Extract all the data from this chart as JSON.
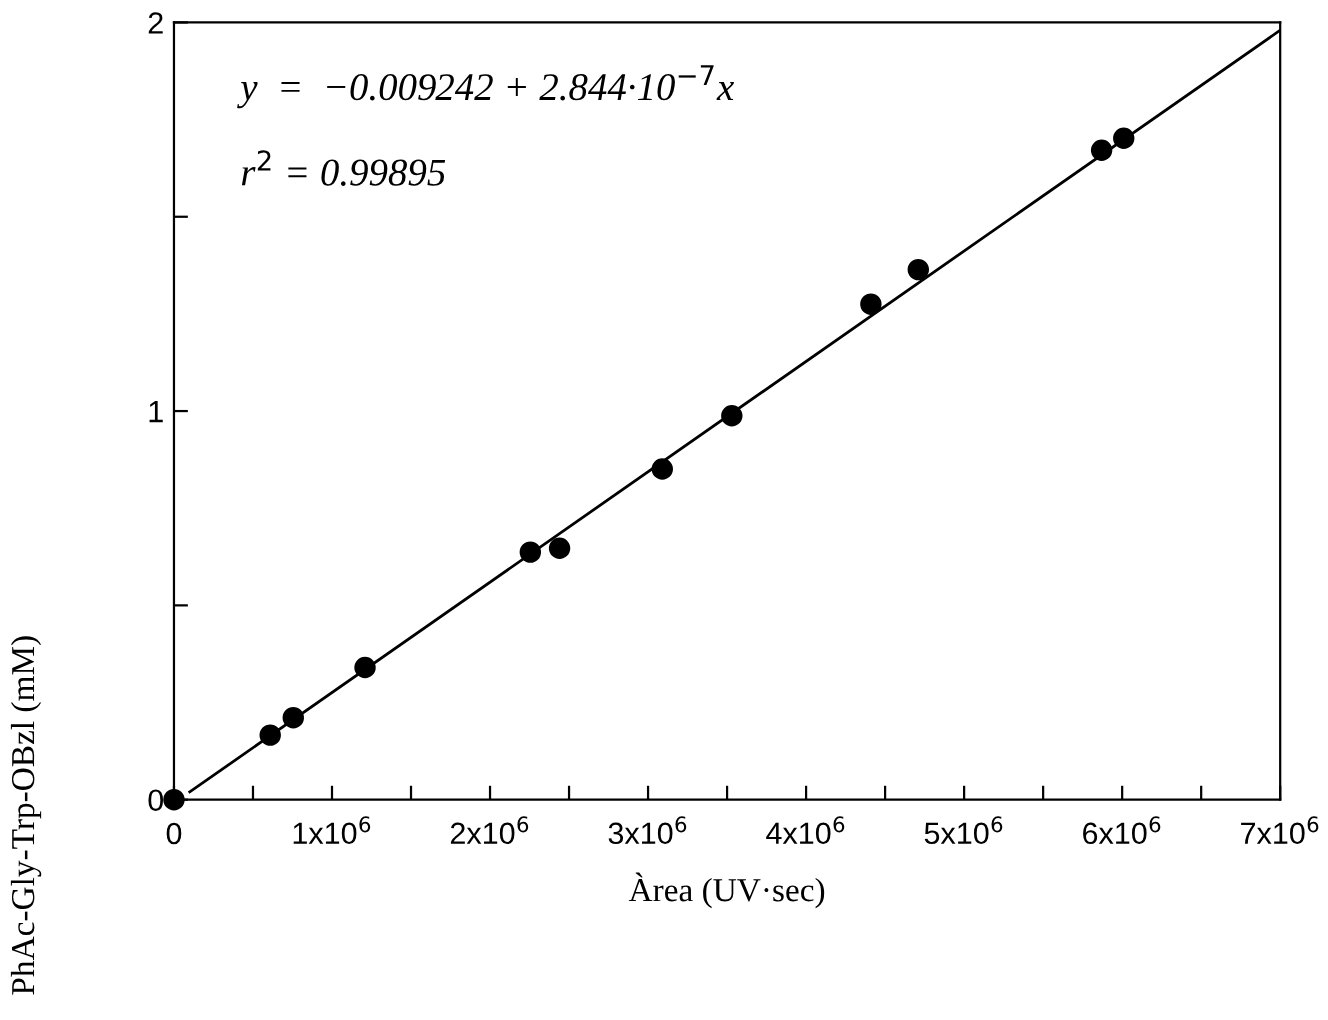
{
  "chart_data": {
    "type": "scatter",
    "xlabel": "Àrea (UV·sec)",
    "ylabel": "PhAc-Gly-Trp-OBzl (mM)",
    "x": [
      0,
      609000,
      755000,
      1209000,
      2255000,
      2440000,
      3090000,
      3530000,
      4410000,
      4710000,
      5870000,
      6010000
    ],
    "series": [
      {
        "color": "#000000",
        "marker": "circle",
        "values": [
          0,
          0.166,
          0.211,
          0.34,
          0.637,
          0.647,
          0.851,
          0.988,
          1.275,
          1.364,
          1.671,
          1.702
        ]
      },
      {
        "type": "line",
        "color": "#000000",
        "x": [
          100000,
          7000000
        ],
        "values": [
          0.02,
          1.98
        ],
        "line_style": "solid"
      }
    ],
    "annotations": [
      "y  =  −0.009242 + 2.844·10$^{−7}$x",
      "r$^{2}$ = 0.99895"
    ],
    "xlim": [
      0,
      7000000
    ],
    "ylim": [
      0,
      2
    ],
    "xticks": [
      {
        "value": 0,
        "label": "0"
      },
      {
        "value": 500000,
        "label": null
      },
      {
        "value": 1000000,
        "label": "1x10$^{6}$"
      },
      {
        "value": 1500000,
        "label": null
      },
      {
        "value": 2000000,
        "label": "2x10$^{6}$"
      },
      {
        "value": 2500000,
        "label": null
      },
      {
        "value": 3000000,
        "label": "3x10$^{6}$"
      },
      {
        "value": 3500000,
        "label": null
      },
      {
        "value": 4000000,
        "label": "4x10$^{6}$"
      },
      {
        "value": 4500000,
        "label": null
      },
      {
        "value": 5000000,
        "label": "5x10$^{6}$"
      },
      {
        "value": 5500000,
        "label": null
      },
      {
        "value": 6000000,
        "label": "6x10$^{6}$"
      },
      {
        "value": 6500000,
        "label": null
      },
      {
        "value": 7000000,
        "label": "7x10$^{6}$"
      }
    ],
    "yticks": [
      0,
      {
        "value": 0.5,
        "label": null
      },
      1,
      {
        "value": 1.5,
        "label": null
      },
      2
    ],
    "grid": false,
    "legend": false
  }
}
